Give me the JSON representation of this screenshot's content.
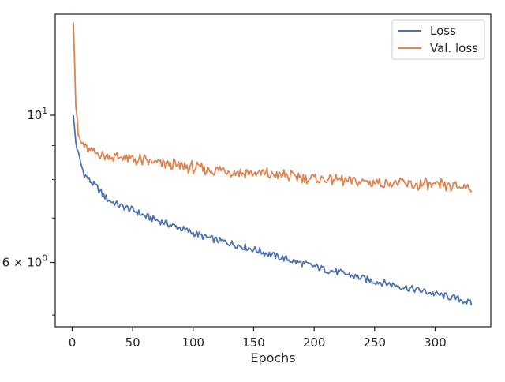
{
  "chart_data": {
    "type": "line",
    "xlabel": "Epochs",
    "ylabel": "",
    "yscale": "log",
    "xlim": [
      -14,
      346
    ],
    "ylim": [
      4.8,
      14.2
    ],
    "x_ticks": [
      0,
      50,
      100,
      150,
      200,
      250,
      300
    ],
    "x_tick_labels": [
      "0",
      "50",
      "100",
      "150",
      "200",
      "250",
      "300"
    ],
    "y_major_ticks": [
      {
        "value": 6,
        "base": "6 × 10",
        "exp": "0"
      },
      {
        "value": 10,
        "base": "10",
        "exp": "1"
      }
    ],
    "y_minor_ticks": [
      5,
      7,
      8,
      9
    ],
    "legend": {
      "placement": "top-right"
    },
    "x": [
      1,
      3,
      5,
      8,
      10,
      15,
      20,
      25,
      30,
      40,
      50,
      60,
      70,
      80,
      90,
      100,
      110,
      120,
      130,
      140,
      150,
      160,
      170,
      180,
      190,
      200,
      210,
      220,
      230,
      240,
      250,
      260,
      270,
      280,
      290,
      300,
      310,
      320,
      330
    ],
    "series": [
      {
        "name": "Loss",
        "color": "#4c72b0",
        "values": [
          10.0,
          9.1,
          8.75,
          8.35,
          8.15,
          7.95,
          7.8,
          7.6,
          7.45,
          7.3,
          7.2,
          7.05,
          6.95,
          6.85,
          6.75,
          6.65,
          6.55,
          6.48,
          6.42,
          6.35,
          6.28,
          6.2,
          6.12,
          6.05,
          5.98,
          5.92,
          5.85,
          5.8,
          5.74,
          5.68,
          5.62,
          5.58,
          5.53,
          5.48,
          5.43,
          5.38,
          5.33,
          5.28,
          5.2
        ]
      },
      {
        "name": "Val. loss",
        "color": "#dd8452",
        "values": [
          13.8,
          10.3,
          9.3,
          9.0,
          8.95,
          8.8,
          8.75,
          8.7,
          8.65,
          8.6,
          8.55,
          8.5,
          8.45,
          8.4,
          8.35,
          8.3,
          8.27,
          8.24,
          8.2,
          8.17,
          8.15,
          8.12,
          8.1,
          8.07,
          8.04,
          8.01,
          7.99,
          7.96,
          7.94,
          7.92,
          7.9,
          7.88,
          7.86,
          7.84,
          7.82,
          7.81,
          7.8,
          7.79,
          7.78
        ]
      }
    ]
  }
}
